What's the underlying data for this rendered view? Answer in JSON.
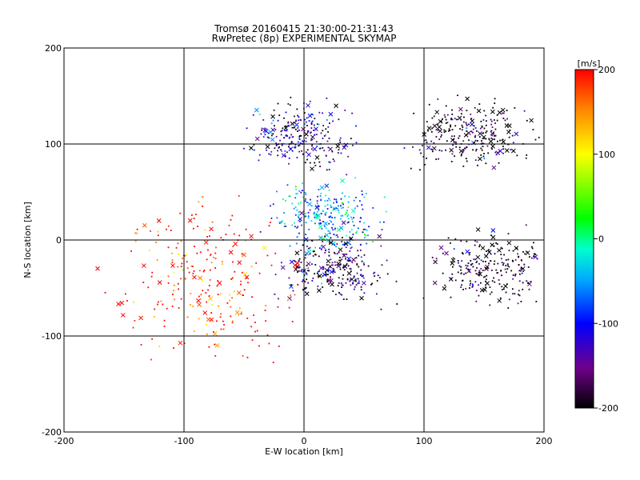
{
  "chart_data": {
    "type": "scatter",
    "title": "Tromsø 20160415 21:30:00-21:31:43",
    "subtitle": "RwPretec (8p) EXPERIMENTAL SKYMAP",
    "xlabel": "E-W location [km]",
    "ylabel": "N-S location [km]",
    "xlim": [
      -200,
      200
    ],
    "ylim": [
      -200,
      200
    ],
    "xticks": [
      "-200",
      "-100",
      "0",
      "100",
      "200"
    ],
    "yticks": [
      "-200",
      "-100",
      "0",
      "100",
      "200"
    ],
    "grid": true,
    "colorbar": {
      "label": "[m/s]",
      "range": [
        -200,
        200
      ],
      "ticks": [
        "200",
        "100",
        "0",
        "-100",
        "-200"
      ],
      "colormap": "black-purple-blue-cyan-green-yellow-red"
    },
    "clusters": [
      {
        "region": "north",
        "x_center": -5,
        "y_center": 110,
        "dominant_velocity": -150
      },
      {
        "region": "north-east",
        "x_center": 140,
        "y_center": 110,
        "dominant_velocity": -200
      },
      {
        "region": "center-north",
        "x_center": 20,
        "y_center": 25,
        "dominant_velocity": -60
      },
      {
        "region": "center-south",
        "x_center": 25,
        "y_center": -30,
        "dominant_velocity": -170
      },
      {
        "region": "west",
        "x_center": -80,
        "y_center": -40,
        "dominant_velocity": 200
      },
      {
        "region": "east",
        "x_center": 160,
        "y_center": -30,
        "dominant_velocity": -200
      }
    ]
  }
}
